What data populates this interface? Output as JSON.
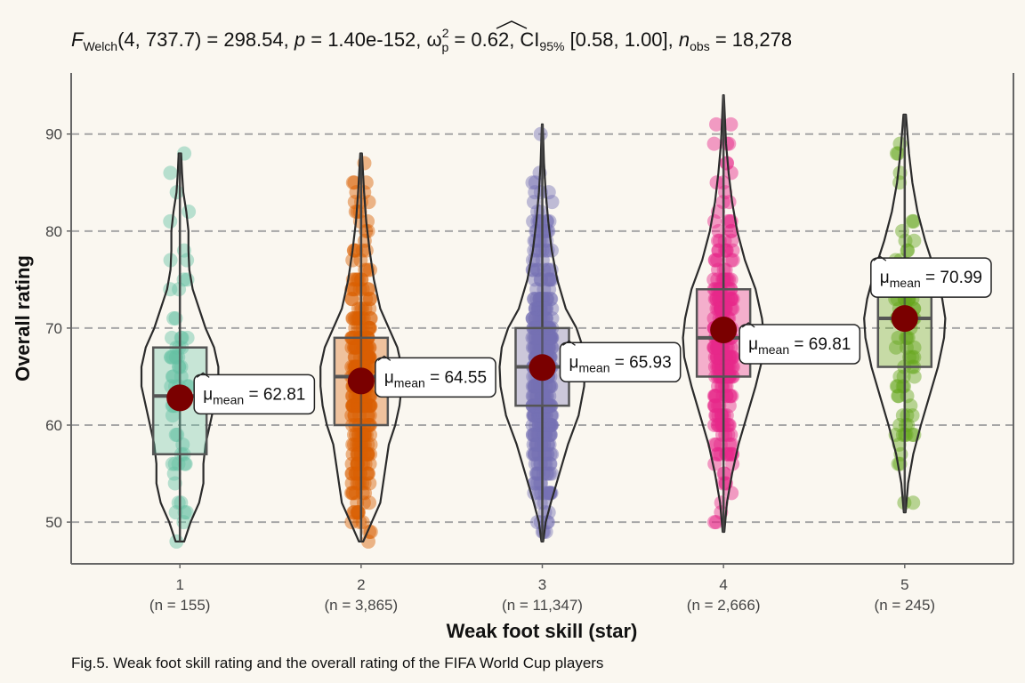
{
  "subtitle": {
    "f_letter": "F",
    "f_sub": "Welch",
    "f_args": "(4, 737.7)",
    "f_value": " = 298.54, ",
    "p_letter": "p",
    "p_value": " = 1.40e-152, ",
    "omega": "ω",
    "omega_sup": "2",
    "omega_sub": "p",
    "omega_value": " = 0.62, CI",
    "ci_sub": "95%",
    "ci_value": " [0.58, 1.00], ",
    "n_letter": "n",
    "n_sub": "obs",
    "n_value": " = 18,278"
  },
  "caption": "Fig.5. Weak foot skill rating and the overall rating of the FIFA World Cup players",
  "chart_data": {
    "type": "violin-box-scatter",
    "xlabel": "Weak foot skill (star)",
    "ylabel": "Overall rating",
    "ylim": [
      45.7,
      96.3
    ],
    "yticks": [
      50,
      60,
      70,
      80,
      90
    ],
    "grid": "horizontal dashed",
    "mean_prefix": "μ",
    "mean_sub": "mean",
    "groups": [
      {
        "category": "1",
        "n_label": "(n = 155)",
        "color": "#66C2A5",
        "q1": 57,
        "median": 63,
        "q3": 68,
        "whisker_low": 48,
        "whisker_high": 88,
        "mean": 62.81,
        "mean_label": " = 62.81",
        "min": 48,
        "max": 88,
        "density": [
          [
            48,
            0.1
          ],
          [
            50,
            0.25
          ],
          [
            52,
            0.45
          ],
          [
            54,
            0.55
          ],
          [
            56,
            0.55
          ],
          [
            58,
            0.6
          ],
          [
            60,
            0.7
          ],
          [
            62,
            0.8
          ],
          [
            64,
            0.9
          ],
          [
            66,
            0.9
          ],
          [
            68,
            0.8
          ],
          [
            70,
            0.6
          ],
          [
            72,
            0.45
          ],
          [
            74,
            0.3
          ],
          [
            76,
            0.22
          ],
          [
            78,
            0.2
          ],
          [
            80,
            0.2
          ],
          [
            82,
            0.15
          ],
          [
            84,
            0.08
          ],
          [
            86,
            0.05
          ],
          [
            88,
            0.03
          ]
        ]
      },
      {
        "category": "2",
        "n_label": "(n = 3,865)",
        "color": "#D95F02",
        "q1": 60,
        "median": 65,
        "q3": 69,
        "whisker_low": 48,
        "whisker_high": 88,
        "mean": 64.55,
        "mean_label": " = 64.55",
        "min": 48,
        "max": 88,
        "density": [
          [
            48,
            0.05
          ],
          [
            50,
            0.25
          ],
          [
            52,
            0.45
          ],
          [
            55,
            0.55
          ],
          [
            58,
            0.65
          ],
          [
            60,
            0.8
          ],
          [
            62,
            0.9
          ],
          [
            64,
            0.95
          ],
          [
            66,
            0.95
          ],
          [
            68,
            0.85
          ],
          [
            70,
            0.65
          ],
          [
            72,
            0.45
          ],
          [
            75,
            0.3
          ],
          [
            78,
            0.2
          ],
          [
            81,
            0.12
          ],
          [
            84,
            0.07
          ],
          [
            88,
            0.02
          ]
        ]
      },
      {
        "category": "3",
        "n_label": "(n = 11,347)",
        "color": "#7570B3",
        "q1": 62,
        "median": 66,
        "q3": 70,
        "whisker_low": 48,
        "whisker_high": 91,
        "mean": 65.93,
        "mean_label": " = 65.93",
        "min": 48,
        "max": 91,
        "density": [
          [
            48,
            0.02
          ],
          [
            50,
            0.08
          ],
          [
            52,
            0.2
          ],
          [
            55,
            0.4
          ],
          [
            58,
            0.6
          ],
          [
            61,
            0.85
          ],
          [
            64,
            0.98
          ],
          [
            66,
            1.0
          ],
          [
            68,
            0.95
          ],
          [
            70,
            0.8
          ],
          [
            72,
            0.55
          ],
          [
            75,
            0.35
          ],
          [
            78,
            0.22
          ],
          [
            81,
            0.14
          ],
          [
            84,
            0.08
          ],
          [
            87,
            0.04
          ],
          [
            91,
            0.01
          ]
        ]
      },
      {
        "category": "4",
        "n_label": "(n = 2,666)",
        "color": "#E7298A",
        "q1": 65,
        "median": 69,
        "q3": 74,
        "whisker_low": 49,
        "whisker_high": 94,
        "mean": 69.81,
        "mean_label": " = 69.81",
        "min": 49,
        "max": 94,
        "density": [
          [
            49,
            0.02
          ],
          [
            52,
            0.08
          ],
          [
            55,
            0.2
          ],
          [
            58,
            0.35
          ],
          [
            61,
            0.55
          ],
          [
            64,
            0.75
          ],
          [
            67,
            0.92
          ],
          [
            69,
            0.95
          ],
          [
            71,
            0.9
          ],
          [
            74,
            0.75
          ],
          [
            77,
            0.5
          ],
          [
            80,
            0.32
          ],
          [
            83,
            0.2
          ],
          [
            86,
            0.12
          ],
          [
            89,
            0.06
          ],
          [
            94,
            0.01
          ]
        ]
      },
      {
        "category": "5",
        "n_label": "(n = 245)",
        "color": "#66A61E",
        "q1": 66,
        "median": 71,
        "q3": 76,
        "whisker_low": 51,
        "whisker_high": 92,
        "mean": 70.99,
        "mean_label": " = 70.99",
        "min": 51,
        "max": 92,
        "density": [
          [
            51,
            0.02
          ],
          [
            54,
            0.08
          ],
          [
            57,
            0.2
          ],
          [
            60,
            0.38
          ],
          [
            63,
            0.58
          ],
          [
            66,
            0.78
          ],
          [
            69,
            0.92
          ],
          [
            71,
            0.95
          ],
          [
            73,
            0.88
          ],
          [
            76,
            0.7
          ],
          [
            79,
            0.48
          ],
          [
            82,
            0.3
          ],
          [
            85,
            0.18
          ],
          [
            88,
            0.1
          ],
          [
            92,
            0.03
          ]
        ]
      }
    ]
  }
}
